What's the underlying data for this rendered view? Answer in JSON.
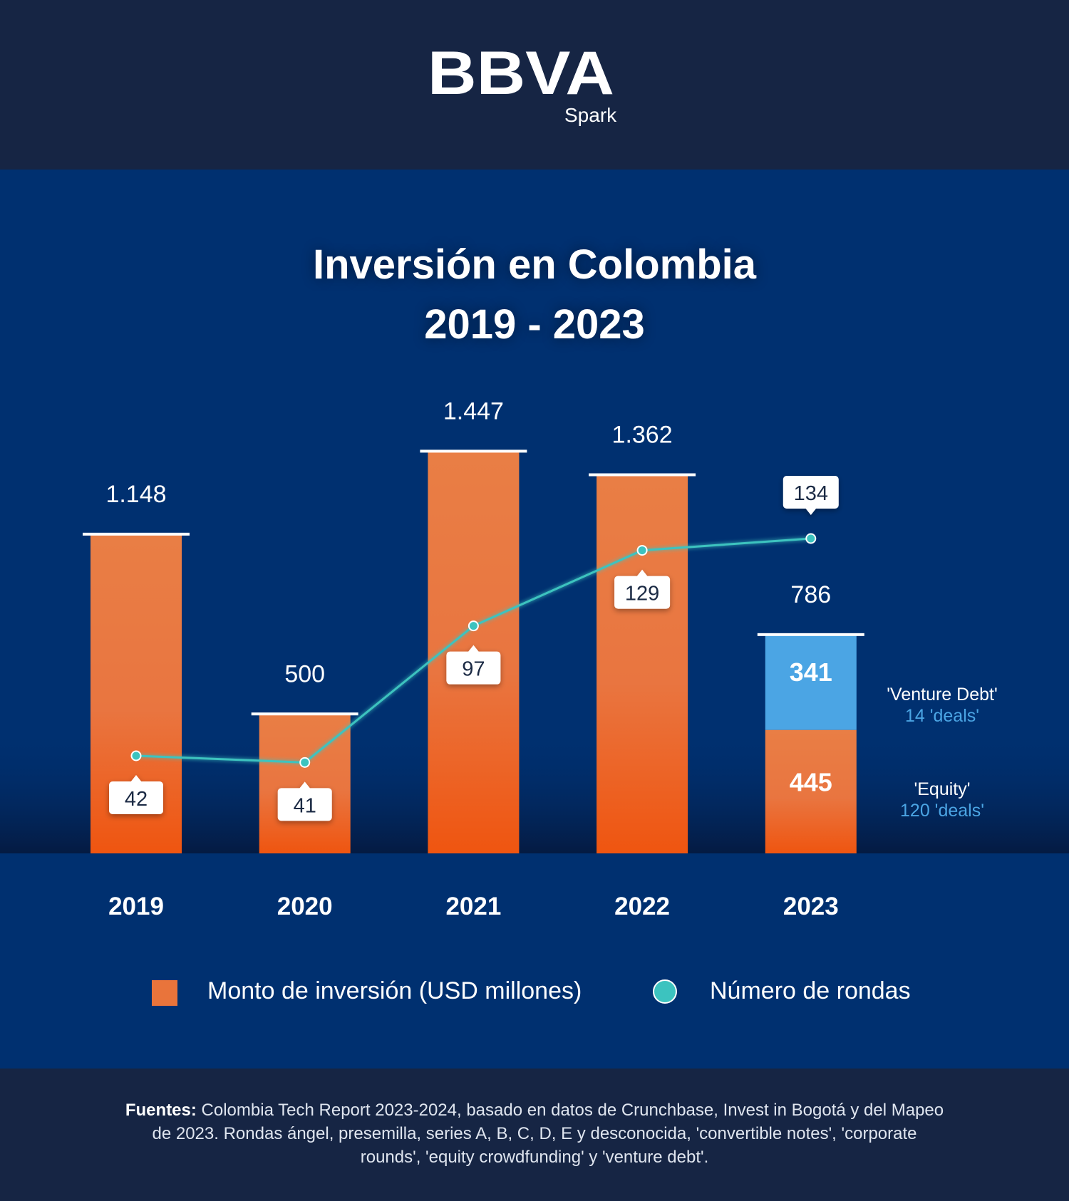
{
  "header": {
    "logo_text": "BBVA",
    "logo_sub": "Spark"
  },
  "title": {
    "line1": "Inversión en Colombia",
    "line2": "2019 - 2023"
  },
  "colors": {
    "bar_top": "#e97e45",
    "bar_bottom": "#ee5a16",
    "venture_debt": "#4ba5e4",
    "line": "#3cc3bf",
    "annotation_blue": "#4ba5e4"
  },
  "chart_data": {
    "type": "bar",
    "categories": [
      "2019",
      "2020",
      "2021",
      "2022",
      "2023"
    ],
    "series": [
      {
        "name": "Monto de inversión (USD millones)",
        "type": "bar",
        "values": [
          1148,
          500,
          1447,
          1362,
          786
        ],
        "labels": [
          "1.148",
          "500",
          "1.447",
          "1.362",
          "786"
        ]
      },
      {
        "name": "Número de rondas",
        "type": "line",
        "values": [
          42,
          41,
          97,
          129,
          134
        ],
        "labels": [
          "42",
          "41",
          "97",
          "129",
          "134"
        ]
      }
    ],
    "breakdown_2023": [
      {
        "name": "'Equity'",
        "value": 445,
        "label": "445",
        "deals": "120 'deals'"
      },
      {
        "name": "'Venture Debt'",
        "value": 341,
        "label": "341",
        "deals": "14 'deals'"
      }
    ],
    "legend": {
      "bar": "Monto de inversión (USD millones)",
      "line": "Número de rondas"
    }
  },
  "footer": {
    "label": "Fuentes:",
    "text": " Colombia Tech Report 2023-2024, basado en datos de Crunchbase, Invest in Bogotá y del Mapeo de 2023. Rondas ángel, presemilla, series A, B, C, D, E y desconocida, 'convertible notes', 'corporate rounds', 'equity crowdfunding' y 'venture debt'."
  }
}
